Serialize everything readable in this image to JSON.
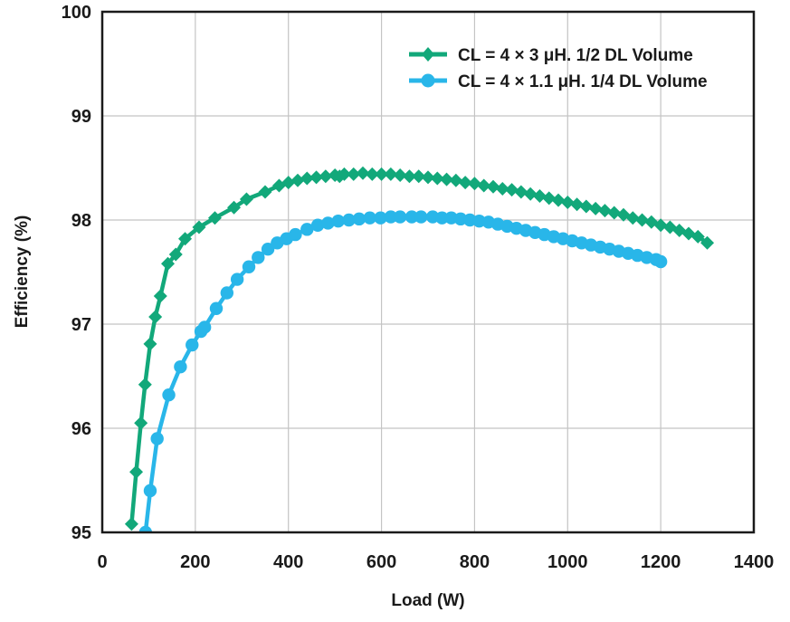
{
  "chart_data": {
    "type": "line",
    "title": "",
    "xlabel": "Load (W)",
    "ylabel": "Efficiency (%)",
    "xlim": [
      0,
      1400
    ],
    "ylim": [
      95,
      100
    ],
    "x_ticks": [
      "0",
      "200",
      "400",
      "600",
      "800",
      "1000",
      "1200",
      "1400"
    ],
    "y_ticks": [
      "95",
      "96",
      "97",
      "98",
      "99",
      "100"
    ],
    "grid": true,
    "legend_position": "top-right",
    "series": [
      {
        "name": "CL = 4 × 3 μH. 1/2 DL Volume",
        "color": "#12a87a",
        "marker": "diamond",
        "x": [
          63,
          73,
          83,
          92,
          103,
          114,
          125,
          141,
          158,
          178,
          208,
          242,
          283,
          310,
          350,
          380,
          400,
          420,
          440,
          460,
          480,
          500,
          510,
          520,
          540,
          560,
          580,
          600,
          620,
          640,
          660,
          680,
          700,
          720,
          740,
          760,
          780,
          800,
          820,
          840,
          860,
          880,
          900,
          920,
          940,
          960,
          980,
          1000,
          1020,
          1040,
          1060,
          1080,
          1100,
          1120,
          1140,
          1160,
          1180,
          1200,
          1220,
          1240,
          1260,
          1280,
          1300
        ],
        "y": [
          95.08,
          95.58,
          96.05,
          96.42,
          96.81,
          97.07,
          97.27,
          97.58,
          97.67,
          97.82,
          97.93,
          98.02,
          98.12,
          98.2,
          98.27,
          98.33,
          98.36,
          98.38,
          98.4,
          98.41,
          98.42,
          98.43,
          98.42,
          98.44,
          98.44,
          98.45,
          98.44,
          98.44,
          98.44,
          98.43,
          98.42,
          98.42,
          98.41,
          98.4,
          98.39,
          98.38,
          98.36,
          98.35,
          98.33,
          98.32,
          98.3,
          98.29,
          98.27,
          98.25,
          98.23,
          98.21,
          98.19,
          98.17,
          98.15,
          98.13,
          98.11,
          98.09,
          98.07,
          98.05,
          98.02,
          98.0,
          97.98,
          97.95,
          97.93,
          97.9,
          97.87,
          97.84,
          97.78
        ]
      },
      {
        "name": "CL = 4 × 1.1 μH. 1/4 DL Volume",
        "color": "#29b6e9",
        "marker": "circle",
        "x": [
          93,
          103,
          118,
          143,
          168,
          193,
          212,
          220,
          245,
          268,
          290,
          315,
          335,
          356,
          376,
          396,
          415,
          440,
          463,
          485,
          507,
          530,
          552,
          575,
          598,
          620,
          640,
          665,
          685,
          710,
          730,
          750,
          770,
          790,
          810,
          830,
          850,
          870,
          890,
          910,
          930,
          950,
          970,
          990,
          1010,
          1030,
          1050,
          1070,
          1090,
          1110,
          1130,
          1150,
          1170,
          1190,
          1200
        ],
        "y": [
          95.0,
          95.4,
          95.9,
          96.32,
          96.59,
          96.8,
          96.93,
          96.97,
          97.15,
          97.3,
          97.43,
          97.55,
          97.64,
          97.72,
          97.78,
          97.82,
          97.86,
          97.91,
          97.95,
          97.97,
          97.99,
          98.0,
          98.01,
          98.02,
          98.02,
          98.03,
          98.03,
          98.03,
          98.03,
          98.03,
          98.02,
          98.02,
          98.01,
          98.0,
          97.99,
          97.98,
          97.96,
          97.94,
          97.92,
          97.9,
          97.88,
          97.86,
          97.84,
          97.82,
          97.8,
          97.78,
          97.76,
          97.74,
          97.72,
          97.7,
          97.68,
          97.66,
          97.64,
          97.62,
          97.6
        ]
      }
    ]
  }
}
